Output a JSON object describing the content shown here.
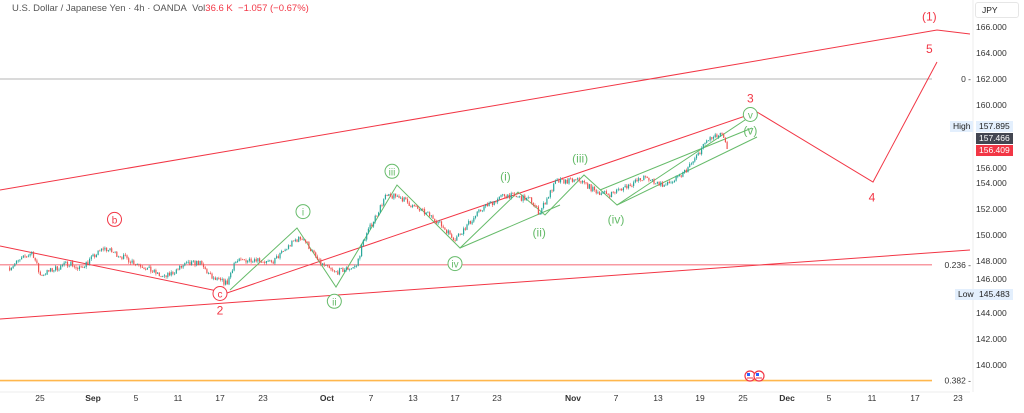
{
  "header": {
    "symbol": "U.S. Dollar / Japanese Yen · 4h · OANDA",
    "vol_label": "Vol",
    "vol_value": "36.6 K",
    "change": "−1.057 (−0.67%)"
  },
  "price_axis": {
    "currency": "JPY",
    "ticks": [
      "166.000",
      "164.000",
      "162.000",
      "160.000",
      "156.000",
      "154.000",
      "152.000",
      "150.000",
      "148.000",
      "146.000",
      "144.000",
      "142.000",
      "140.000"
    ],
    "high_label": "High",
    "high_value": "157.895",
    "low_label": "Low",
    "low_value": "145.483",
    "last_close": "157.466",
    "current_price": "156.409"
  },
  "colors": {
    "up": "#26a69a",
    "down": "#ef5350",
    "wave_primary": "#f23645",
    "wave_minor": "#66bb6a",
    "fib_0": "#9e9e9e",
    "fib_0236": "#f23645",
    "fib_0382": "#ffb74d"
  },
  "chart_data": {
    "type": "candlestick",
    "ylim": [
      139,
      167
    ],
    "x_ticks": [
      {
        "label": "25",
        "date": "2024-08-25",
        "bold": false
      },
      {
        "label": "Sep",
        "date": "2024-09-01",
        "bold": true
      },
      {
        "label": "5",
        "date": "2024-09-05",
        "bold": false
      },
      {
        "label": "11",
        "date": "2024-09-11",
        "bold": false
      },
      {
        "label": "17",
        "date": "2024-09-17",
        "bold": false
      },
      {
        "label": "23",
        "date": "2024-09-23",
        "bold": false
      },
      {
        "label": "Oct",
        "date": "2024-10-01",
        "bold": true
      },
      {
        "label": "7",
        "date": "2024-10-07",
        "bold": false
      },
      {
        "label": "13",
        "date": "2024-10-13",
        "bold": false
      },
      {
        "label": "17",
        "date": "2024-10-17",
        "bold": false
      },
      {
        "label": "23",
        "date": "2024-10-23",
        "bold": false
      },
      {
        "label": "Nov",
        "date": "2024-11-01",
        "bold": true
      },
      {
        "label": "7",
        "date": "2024-11-07",
        "bold": false
      },
      {
        "label": "13",
        "date": "2024-11-13",
        "bold": false
      },
      {
        "label": "19",
        "date": "2024-11-19",
        "bold": false
      },
      {
        "label": "25",
        "date": "2024-11-25",
        "bold": false
      },
      {
        "label": "Dec",
        "date": "2024-12-01",
        "bold": true
      },
      {
        "label": "5",
        "date": "2024-12-05",
        "bold": false
      },
      {
        "label": "11",
        "date": "2024-12-11",
        "bold": false
      },
      {
        "label": "17",
        "date": "2024-12-17",
        "bold": false
      },
      {
        "label": "23",
        "date": "2024-12-23",
        "bold": false
      }
    ],
    "price_path": [
      [
        "2024-08-21",
        147.5
      ],
      [
        "2024-08-24",
        148.7
      ],
      [
        "2024-08-25",
        146.9
      ],
      [
        "2024-08-29",
        147.9
      ],
      [
        "2024-08-30",
        147.3
      ],
      [
        "2024-09-02",
        149.0
      ],
      [
        "2024-09-06",
        147.6
      ],
      [
        "2024-09-09",
        146.7
      ],
      [
        "2024-09-12",
        147.7
      ],
      [
        "2024-09-14",
        147.9
      ],
      [
        "2024-09-16",
        146.6
      ],
      [
        "2024-09-18",
        146.3
      ],
      [
        "2024-09-19",
        147.9
      ],
      [
        "2024-09-22",
        148.2
      ],
      [
        "2024-09-24",
        147.8
      ],
      [
        "2024-09-27",
        149.6
      ],
      [
        "2024-09-28",
        149.8
      ],
      [
        "2024-09-30",
        147.9
      ],
      [
        "2024-10-02",
        147.1
      ],
      [
        "2024-10-05",
        147.6
      ],
      [
        "2024-10-06",
        149.6
      ],
      [
        "2024-10-09",
        152.9
      ],
      [
        "2024-10-11",
        153.0
      ],
      [
        "2024-10-13",
        152.2
      ],
      [
        "2024-10-15",
        151.3
      ],
      [
        "2024-10-17",
        149.7
      ],
      [
        "2024-10-21",
        152.1
      ],
      [
        "2024-10-24",
        153.1
      ],
      [
        "2024-10-27",
        152.7
      ],
      [
        "2024-10-28",
        151.7
      ],
      [
        "2024-10-30",
        154.1
      ],
      [
        "2024-11-02",
        154.2
      ],
      [
        "2024-11-04",
        153.4
      ],
      [
        "2024-11-06",
        153.1
      ],
      [
        "2024-11-09",
        153.9
      ],
      [
        "2024-11-11",
        154.4
      ],
      [
        "2024-11-14",
        153.8
      ],
      [
        "2024-11-16",
        154.4
      ],
      [
        "2024-11-18",
        155.6
      ],
      [
        "2024-11-20",
        157.3
      ],
      [
        "2024-11-22",
        157.7
      ],
      [
        "2024-11-23",
        156.4
      ]
    ],
    "annotations": [
      {
        "label": "(1)",
        "date": "2024-12-19",
        "price": 166.8,
        "group": "primary",
        "circled": false
      },
      {
        "label": "5",
        "date": "2024-12-19",
        "price": 164.3,
        "group": "primary",
        "circled": false
      },
      {
        "label": "3",
        "date": "2024-11-26",
        "price": 160.5,
        "group": "primary",
        "circled": false
      },
      {
        "label": "4",
        "date": "2024-12-11",
        "price": 152.9,
        "group": "primary",
        "circled": false
      },
      {
        "label": "2",
        "date": "2024-09-17",
        "price": 144.2,
        "group": "primary",
        "circled": false
      },
      {
        "label": "b",
        "date": "2024-09-03",
        "price": 151.2,
        "group": "primary",
        "circled": true
      },
      {
        "label": "c",
        "date": "2024-09-17",
        "price": 145.5,
        "group": "primary",
        "circled": true
      },
      {
        "label": "i",
        "date": "2024-09-28",
        "price": 151.8,
        "group": "minor",
        "circled": true
      },
      {
        "label": "ii",
        "date": "2024-10-02",
        "price": 144.9,
        "group": "minor",
        "circled": true
      },
      {
        "label": "iii",
        "date": "2024-10-10",
        "price": 154.9,
        "group": "minor",
        "circled": true
      },
      {
        "label": "iv",
        "date": "2024-10-17",
        "price": 147.8,
        "group": "minor",
        "circled": true
      },
      {
        "label": "(i)",
        "date": "2024-10-24",
        "price": 154.5,
        "group": "minor",
        "circled": false
      },
      {
        "label": "(ii)",
        "date": "2024-10-28",
        "price": 150.2,
        "group": "minor",
        "circled": false
      },
      {
        "label": "(iii)",
        "date": "2024-11-02",
        "price": 155.9,
        "group": "minor",
        "circled": false
      },
      {
        "label": "(iv)",
        "date": "2024-11-07",
        "price": 151.2,
        "group": "minor",
        "circled": false
      },
      {
        "label": "v",
        "date": "2024-11-26",
        "price": 159.5,
        "group": "minor",
        "circled": true
      },
      {
        "label": "(v)",
        "date": "2024-11-26",
        "price": 158.5,
        "group": "minor",
        "circled": false
      }
    ],
    "fib_levels": [
      {
        "label": "0",
        "price": 162.0
      },
      {
        "label": "0.236",
        "price": 147.7
      },
      {
        "label": "0.382",
        "price": 138.8
      }
    ],
    "events": [
      {
        "icon": "us-flag-icon"
      },
      {
        "icon": "us-flag-icon"
      }
    ]
  }
}
